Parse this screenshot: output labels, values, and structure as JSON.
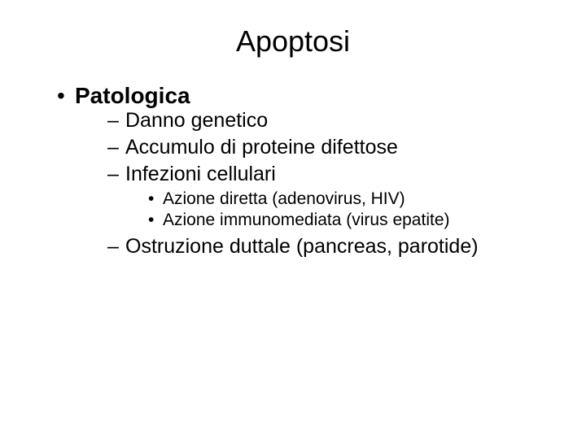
{
  "title": "Apoptosi",
  "level1": {
    "item0": "Patologica"
  },
  "level2": {
    "item0": "Danno genetico",
    "item1": "Accumulo di proteine difettose",
    "item2": "Infezioni cellulari",
    "item3": "Ostruzione duttale (pancreas, parotide)"
  },
  "level3": {
    "item0": "Azione diretta (adenovirus, HIV)",
    "item1": "Azione immunomediata (virus epatite)"
  },
  "style": {
    "background_color": "#ffffff",
    "text_color": "#000000",
    "title_fontsize": 36,
    "level1_fontsize": 28,
    "level2_fontsize": 25,
    "level3_fontsize": 21,
    "font_family": "Arial"
  }
}
